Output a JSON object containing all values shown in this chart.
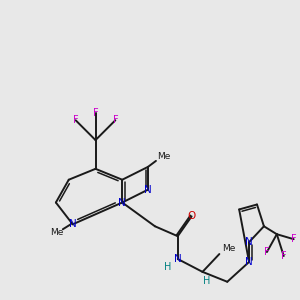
{
  "bg_color": "#e8e8e8",
  "bond_color": "#1a1a1a",
  "N_color": "#0000cc",
  "O_color": "#cc0000",
  "F_color": "#cc00cc",
  "H_color": "#008080",
  "fig_size": [
    3.0,
    3.0
  ],
  "dpi": 100,
  "xlim": [
    0,
    300
  ],
  "ylim": [
    0,
    300
  ]
}
